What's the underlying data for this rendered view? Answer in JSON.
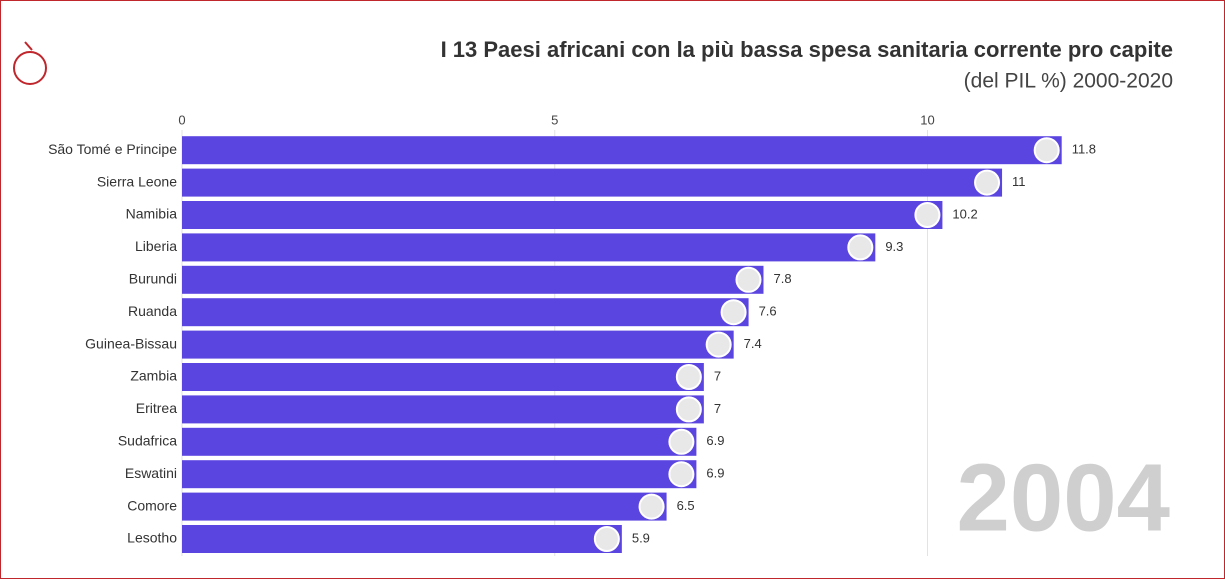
{
  "chart_data": {
    "type": "bar",
    "orientation": "horizontal",
    "title": "I 13 Paesi africani con la più bassa spesa sanitaria corrente pro capite",
    "subtitle": "(del PIL %) 2000-2020",
    "year_label": "2004",
    "categories": [
      "São Tomé e Principe",
      "Sierra Leone",
      "Namibia",
      "Liberia",
      "Burundi",
      "Ruanda",
      "Guinea-Bissau",
      "Zambia",
      "Eritrea",
      "Sudafrica",
      "Eswatini",
      "Comore",
      "Lesotho"
    ],
    "values": [
      11.8,
      11,
      10.2,
      9.3,
      7.8,
      7.6,
      7.4,
      7,
      7,
      6.9,
      6.9,
      6.5,
      5.9
    ],
    "color": "#5b45e0",
    "xlim": [
      0,
      13.3
    ],
    "xticks": [
      0,
      5,
      10
    ],
    "grid": true
  }
}
